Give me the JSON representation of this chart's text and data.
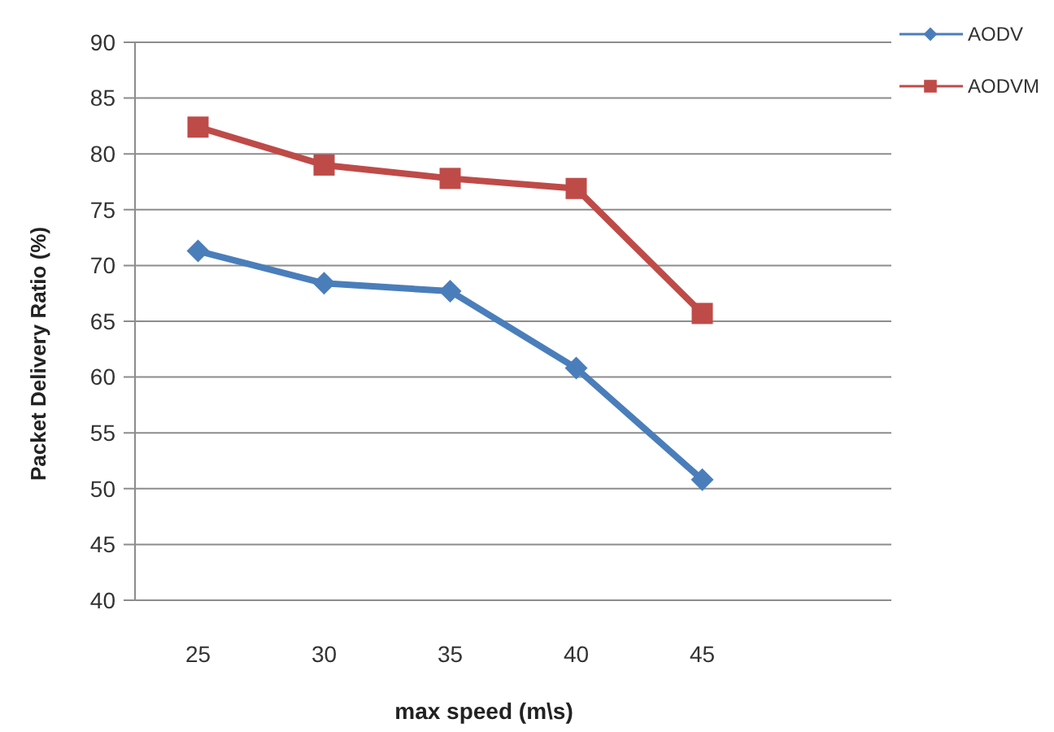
{
  "chart_data": {
    "type": "line",
    "xlabel": "max speed (m\\s)",
    "ylabel": "Packet Delivery Ratio  (%)",
    "x": [
      25,
      30,
      35,
      40,
      45
    ],
    "xlim": [
      22.5,
      52.5
    ],
    "xticks": [
      25,
      30,
      35,
      40,
      45
    ],
    "ylim": [
      40,
      90
    ],
    "yticks": [
      40,
      45,
      50,
      55,
      60,
      65,
      70,
      75,
      80,
      85,
      90
    ],
    "grid": "y",
    "legend": "top right",
    "series": [
      {
        "name": "AODV",
        "color": "#4a7ebb",
        "marker": "diamond",
        "values": [
          71.3,
          68.4,
          67.7,
          60.8,
          50.8
        ]
      },
      {
        "name": "AODVM",
        "color": "#be4b48",
        "marker": "square",
        "values": [
          82.4,
          79.0,
          77.8,
          76.9,
          65.7
        ]
      }
    ]
  }
}
